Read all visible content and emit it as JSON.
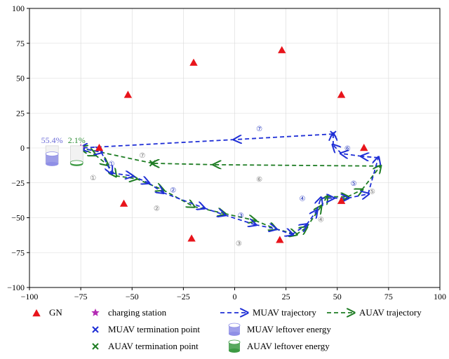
{
  "chart_data": {
    "type": "scatter",
    "title": "",
    "xlabel": "",
    "ylabel": "",
    "xlim": [
      -100,
      100
    ],
    "ylim": [
      -100,
      100
    ],
    "xticks": [
      -100,
      -75,
      -50,
      -25,
      0,
      25,
      50,
      75,
      100
    ],
    "yticks": [
      -100,
      -75,
      -50,
      -25,
      0,
      25,
      50,
      75,
      100
    ],
    "tick_labels_x": [
      "−100",
      "−75",
      "−50",
      "−25",
      "0",
      "25",
      "50",
      "75",
      "100"
    ],
    "tick_labels_y": [
      "−100",
      "−75",
      "−50",
      "−25",
      "0",
      "25",
      "50",
      "75",
      "100"
    ],
    "grid": true,
    "legend_position": "bottom",
    "colors": {
      "gn": "#e8141b",
      "charging": "#b42bb4",
      "muav": "#1f2fd6",
      "auav": "#1f7d24",
      "muav_bar": "#8f8fe6",
      "auav_bar": "#3c9a43"
    },
    "gn_points": [
      {
        "x": -66,
        "y": 0
      },
      {
        "x": -54,
        "y": -40
      },
      {
        "x": -52,
        "y": 38
      },
      {
        "x": -20,
        "y": 61
      },
      {
        "x": -21,
        "y": -65
      },
      {
        "x": 22,
        "y": -66
      },
      {
        "x": 23,
        "y": 70
      },
      {
        "x": 52,
        "y": 38
      },
      {
        "x": 52,
        "y": -38
      },
      {
        "x": 63,
        "y": 0
      }
    ],
    "charging_station": {
      "x": -75,
      "y": 0
    },
    "muav_trajectory": [
      [
        -75,
        0
      ],
      [
        -65,
        -3
      ],
      [
        -60,
        -18
      ],
      [
        -50,
        -20
      ],
      [
        -42,
        -25
      ],
      [
        -35,
        -32
      ],
      [
        -15,
        -43
      ],
      [
        -5,
        -48
      ],
      [
        10,
        -55
      ],
      [
        20,
        -58
      ],
      [
        28,
        -62
      ],
      [
        35,
        -55
      ],
      [
        40,
        -45
      ],
      [
        42,
        -36
      ],
      [
        48,
        -36
      ],
      [
        55,
        -36
      ],
      [
        65,
        -33
      ],
      [
        70,
        -7
      ],
      [
        62,
        -6
      ],
      [
        52,
        -4
      ],
      [
        48,
        2
      ],
      [
        48,
        10
      ],
      [
        0,
        6
      ],
      [
        -75,
        0
      ]
    ],
    "auav_trajectory": [
      [
        -75,
        0
      ],
      [
        -68,
        -5
      ],
      [
        -62,
        -12
      ],
      [
        -58,
        -20
      ],
      [
        -48,
        -22
      ],
      [
        -35,
        -30
      ],
      [
        -20,
        -42
      ],
      [
        -5,
        -47
      ],
      [
        10,
        -52
      ],
      [
        20,
        -58
      ],
      [
        30,
        -62
      ],
      [
        35,
        -57
      ],
      [
        42,
        -42
      ],
      [
        45,
        -35
      ],
      [
        55,
        -35
      ],
      [
        62,
        -30
      ],
      [
        71,
        -13
      ],
      [
        -10,
        -12
      ],
      [
        -40,
        -11
      ],
      [
        -75,
        0
      ]
    ],
    "muav_termination": {
      "x": 48,
      "y": 10
    },
    "auav_termination": {
      "x": -40,
      "y": -11
    },
    "muav_labels": [
      {
        "text": "①",
        "x": -60,
        "y": -11
      },
      {
        "text": "②",
        "x": -30,
        "y": -30
      },
      {
        "text": "③",
        "x": 3,
        "y": -48
      },
      {
        "text": "④",
        "x": 33,
        "y": -36
      },
      {
        "text": "⑤",
        "x": 58,
        "y": -25
      },
      {
        "text": "⑥",
        "x": 55,
        "y": 0
      },
      {
        "text": "⑦",
        "x": 12,
        "y": 14
      }
    ],
    "auav_labels": [
      {
        "text": "①",
        "x": -69,
        "y": -21
      },
      {
        "text": "②",
        "x": -38,
        "y": -43
      },
      {
        "text": "③",
        "x": 2,
        "y": -68
      },
      {
        "text": "④",
        "x": 42,
        "y": -51
      },
      {
        "text": "⑤",
        "x": 67,
        "y": -31
      },
      {
        "text": "⑥",
        "x": 12,
        "y": -22
      },
      {
        "text": "⑦",
        "x": -45,
        "y": -5
      }
    ],
    "leftover_energy": [
      {
        "name": "MUAV leftover energy",
        "value": 55.4,
        "label": "55.4%",
        "x": -89
      },
      {
        "name": "AUAV leftover energy",
        "value": 2.1,
        "label": "2.1%",
        "x": -77
      }
    ],
    "legend": [
      {
        "key": "gn",
        "label": "GN",
        "marker": "triangle"
      },
      {
        "key": "charging",
        "label": "charging station",
        "marker": "star"
      },
      {
        "key": "muav",
        "label": "MUAV trajectory",
        "marker": "dashed-arrow"
      },
      {
        "key": "auav",
        "label": "AUAV trajectory",
        "marker": "dashed-arrow"
      },
      {
        "key": "muav_term",
        "label": "MUAV termination point",
        "marker": "x-blue"
      },
      {
        "key": "muav_bar",
        "label": "MUAV leftover energy",
        "marker": "cylinder-blue"
      },
      {
        "key": "auav_term",
        "label": "AUAV termination point",
        "marker": "x-green"
      },
      {
        "key": "auav_bar",
        "label": "AUAV leftover energy",
        "marker": "cylinder-green"
      }
    ]
  }
}
